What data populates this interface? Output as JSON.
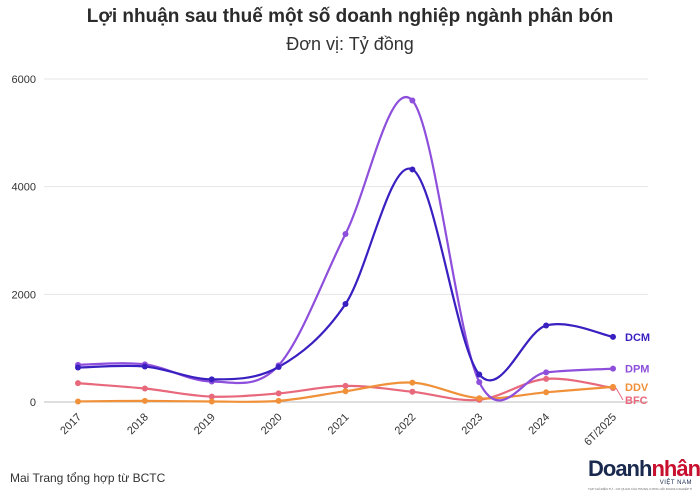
{
  "title": "Lợi nhuận sau thuế một số doanh nghiệp ngành phân bón",
  "subtitle": "Đơn vị: Tỷ đồng",
  "source": "Mai Trang tổng hợp từ BCTC",
  "logo": {
    "main_dark": "Doanh",
    "main_red": "nhân",
    "sub": "VIỆT NAM",
    "tagline": "TẠP CHÍ ĐIỆN TỬ - CƠ QUAN CỦA TRUNG ƯƠNG HỘI DOANH NGHIỆP TRẺ VIỆT NAM"
  },
  "chart_data": {
    "type": "line",
    "title": "Lợi nhuận sau thuế một số doanh nghiệp ngành phân bón",
    "subtitle": "Đơn vị: Tỷ đồng",
    "categories": [
      "2017",
      "2018",
      "2019",
      "2020",
      "2021",
      "2022",
      "2023",
      "2024",
      "6T/2025"
    ],
    "ylim": [
      0,
      6000
    ],
    "yticks": [
      0,
      2000,
      4000,
      6000
    ],
    "grid": true,
    "series": [
      {
        "name": "DCM",
        "color": "#3a1fc1",
        "values": [
          640,
          660,
          420,
          650,
          1820,
          4320,
          510,
          1420,
          1210
        ]
      },
      {
        "name": "DPM",
        "color": "#8e4fdc",
        "values": [
          690,
          700,
          380,
          680,
          3120,
          5600,
          370,
          550,
          620
        ]
      },
      {
        "name": "DDV",
        "color": "#f0913a",
        "values": [
          10,
          20,
          10,
          20,
          200,
          360,
          70,
          180,
          280
        ]
      },
      {
        "name": "BFC",
        "color": "#e8687c",
        "values": [
          350,
          250,
          100,
          160,
          300,
          190,
          40,
          430,
          260
        ]
      }
    ]
  }
}
